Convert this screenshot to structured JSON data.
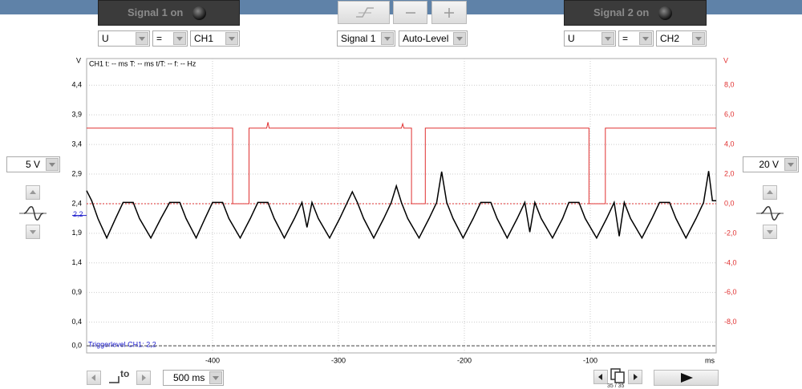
{
  "toolbar": {
    "signal1_button": "Signal 1 on",
    "signal2_button": "Signal 2 on"
  },
  "controls": {
    "ch1_quantity": "U",
    "ch1_operator": "=",
    "ch1_source": "CH1",
    "trigger_source": "Signal 1",
    "trigger_mode": "Auto-Level",
    "ch2_quantity": "U",
    "ch2_operator": "=",
    "ch2_source": "CH2",
    "ch1_range": "5 V",
    "ch2_range": "20 V",
    "timebase": "500 ms",
    "zoom_label": "to",
    "page": "35 / 35"
  },
  "chart_data": {
    "type": "line",
    "info": "CH1  t: -- ms   T: -- ms   t/T: --   f: -- Hz",
    "y_unit": "V",
    "y2_unit": "V",
    "x_unit": "ms",
    "xlim": [
      -500,
      0
    ],
    "xticks": [
      -400,
      -300,
      -200,
      -100
    ],
    "ylim": [
      -0.12,
      4.85
    ],
    "yticks": [
      {
        "value": 4.4,
        "label": "4,4"
      },
      {
        "value": 3.9,
        "label": "3,9"
      },
      {
        "value": 3.4,
        "label": "3,4"
      },
      {
        "value": 2.9,
        "label": "2,9"
      },
      {
        "value": 2.4,
        "label": "2,4"
      },
      {
        "value": 1.9,
        "label": "1,9"
      },
      {
        "value": 1.4,
        "label": "1,4"
      },
      {
        "value": 0.9,
        "label": "0,9"
      },
      {
        "value": 0.4,
        "label": "0,4"
      },
      {
        "value": 0,
        "label": "0,0"
      }
    ],
    "y2lim": [
      -10.07,
      9.8
    ],
    "y2ticks": [
      {
        "value": 8,
        "label": "8,0"
      },
      {
        "value": 6,
        "label": "6,0"
      },
      {
        "value": 4,
        "label": "4,0"
      },
      {
        "value": 2,
        "label": "2,0"
      },
      {
        "value": 0,
        "label": "0,0"
      },
      {
        "value": -2,
        "label": "-2,0"
      },
      {
        "value": -4,
        "label": "-4,0"
      },
      {
        "value": -6,
        "label": "-6,0"
      },
      {
        "value": -8,
        "label": "-8,0"
      }
    ],
    "grid": true,
    "trigger": {
      "value": 2.2,
      "label": "2,2",
      "text": "Triggerlevel CH1: 2,2",
      "color": "#1a1acc"
    },
    "reference_lines": [
      {
        "value": 0,
        "axis": "y",
        "color": "#444444",
        "dash": "4 2"
      },
      {
        "value": 0,
        "axis": "y2",
        "color": "#e03030",
        "dash": "2 2"
      }
    ],
    "series": [
      {
        "name": "CH1",
        "color": "#000000",
        "axis": "y",
        "x": [
          -500,
          -496,
          -491,
          -484,
          -477,
          -471,
          -463,
          -458,
          -449,
          -441,
          -434,
          -426,
          -421,
          -413,
          -406,
          -400,
          -392,
          -387,
          -378,
          -370,
          -364,
          -356,
          -351,
          -343,
          -335,
          -329,
          -325,
          -321,
          -316,
          -307,
          -299,
          -293,
          -289,
          -285,
          -280,
          -272,
          -264,
          -258,
          -254,
          -250,
          -245,
          -236,
          -228,
          -222,
          -218,
          -214,
          -209,
          -201,
          -193,
          -187,
          -179,
          -174,
          -166,
          -158,
          -152,
          -148,
          -144,
          -139,
          -130,
          -122,
          -117,
          -109,
          -104,
          -95,
          -87,
          -81,
          -77,
          -73,
          -68,
          -59,
          -51,
          -45,
          -37,
          -32,
          -24,
          -16,
          -10,
          -6,
          -3,
          0
        ],
        "values": [
          2.62,
          2.45,
          2.15,
          1.82,
          2.15,
          2.42,
          2.42,
          2.15,
          1.82,
          2.15,
          2.42,
          2.42,
          2.15,
          1.82,
          2.15,
          2.42,
          2.42,
          2.15,
          1.82,
          2.15,
          2.42,
          2.42,
          2.15,
          1.82,
          2.15,
          2.42,
          2.0,
          2.42,
          2.15,
          1.82,
          2.15,
          2.42,
          2.6,
          2.42,
          2.15,
          1.82,
          2.15,
          2.42,
          2.7,
          2.42,
          2.15,
          1.82,
          2.15,
          2.42,
          2.94,
          2.42,
          2.15,
          1.82,
          2.15,
          2.42,
          2.42,
          2.15,
          1.82,
          2.15,
          2.42,
          1.92,
          2.42,
          2.15,
          1.82,
          2.15,
          2.42,
          2.42,
          2.15,
          1.82,
          2.15,
          2.42,
          1.85,
          2.42,
          2.15,
          1.82,
          2.15,
          2.42,
          2.42,
          2.15,
          1.82,
          2.15,
          2.42,
          2.95,
          2.45,
          2.45
        ]
      },
      {
        "name": "CH2",
        "color": "#e03030",
        "axis": "y2",
        "x": [
          -500,
          -384,
          -384,
          -371,
          -371,
          -357,
          -356,
          -355,
          -250,
          -249,
          -248,
          -242,
          -242,
          -231,
          -231,
          -101,
          -101,
          -88,
          -88,
          0
        ],
        "values": [
          5.1,
          5.1,
          0,
          0,
          5.1,
          5.1,
          5.5,
          5.1,
          5.1,
          5.4,
          5.1,
          5.1,
          0,
          0,
          5.1,
          5.1,
          0,
          0,
          5.1,
          5.1
        ]
      }
    ]
  }
}
